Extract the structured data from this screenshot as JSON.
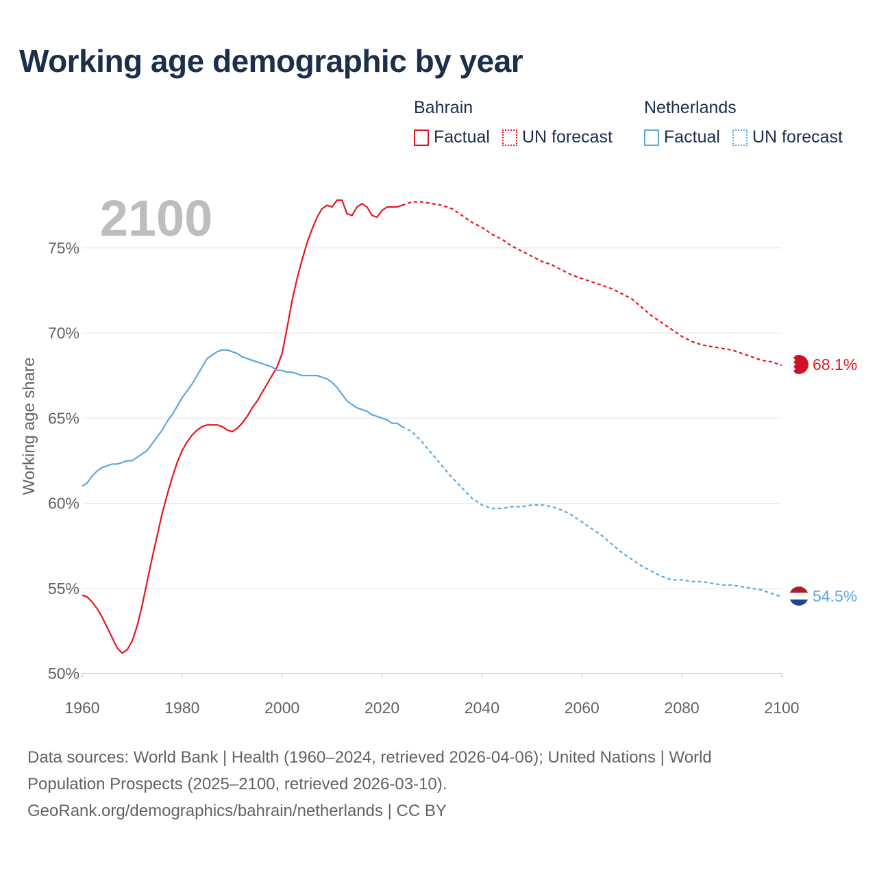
{
  "title": "Working age demographic by year",
  "legend": {
    "groups": [
      {
        "name": "Bahrain",
        "color": "#e8141c",
        "factual_label": "Factual",
        "forecast_label": "UN forecast"
      },
      {
        "name": "Netherlands",
        "color": "#5aa7e2",
        "factual_label": "Factual",
        "forecast_label": "UN forecast"
      }
    ]
  },
  "chart_data": {
    "type": "line",
    "title": "Working age demographic by year",
    "xlabel": "",
    "ylabel": "Working age share",
    "xlim": [
      1960,
      2100
    ],
    "ylim": [
      50,
      78.5
    ],
    "x_ticks": [
      1960,
      1980,
      2000,
      2020,
      2040,
      2060,
      2080,
      2100
    ],
    "x_tick_labels": [
      "1960",
      "1980",
      "2000",
      "2020",
      "2040",
      "2060",
      "2080",
      "2100"
    ],
    "y_ticks": [
      50,
      55,
      60,
      65,
      70,
      75
    ],
    "y_tick_labels": [
      "50%",
      "55%",
      "60%",
      "65%",
      "70%",
      "75%"
    ],
    "year_watermark": "2100",
    "factual_range": [
      1960,
      2024
    ],
    "forecast_range": [
      2024,
      2100
    ],
    "series": [
      {
        "name": "Bahrain",
        "color": "#e8141c",
        "end_label": "68.1%",
        "end_icon": "bahrain-flag-icon",
        "points": [
          [
            1960,
            54.6
          ],
          [
            1961,
            54.5
          ],
          [
            1962,
            54.2
          ],
          [
            1963,
            53.8
          ],
          [
            1964,
            53.3
          ],
          [
            1965,
            52.7
          ],
          [
            1966,
            52.1
          ],
          [
            1967,
            51.5
          ],
          [
            1968,
            51.2
          ],
          [
            1969,
            51.4
          ],
          [
            1970,
            51.9
          ],
          [
            1971,
            52.8
          ],
          [
            1972,
            54.0
          ],
          [
            1973,
            55.4
          ],
          [
            1974,
            56.8
          ],
          [
            1975,
            58.1
          ],
          [
            1976,
            59.4
          ],
          [
            1977,
            60.5
          ],
          [
            1978,
            61.5
          ],
          [
            1979,
            62.4
          ],
          [
            1980,
            63.1
          ],
          [
            1981,
            63.6
          ],
          [
            1982,
            64.0
          ],
          [
            1983,
            64.3
          ],
          [
            1984,
            64.5
          ],
          [
            1985,
            64.6
          ],
          [
            1986,
            64.6
          ],
          [
            1987,
            64.6
          ],
          [
            1988,
            64.5
          ],
          [
            1989,
            64.3
          ],
          [
            1990,
            64.2
          ],
          [
            1991,
            64.4
          ],
          [
            1992,
            64.7
          ],
          [
            1993,
            65.1
          ],
          [
            1994,
            65.6
          ],
          [
            1995,
            66.0
          ],
          [
            1996,
            66.5
          ],
          [
            1997,
            67.0
          ],
          [
            1998,
            67.5
          ],
          [
            1999,
            68.0
          ],
          [
            2000,
            68.8
          ],
          [
            2001,
            70.3
          ],
          [
            2002,
            71.9
          ],
          [
            2003,
            73.2
          ],
          [
            2004,
            74.3
          ],
          [
            2005,
            75.3
          ],
          [
            2006,
            76.1
          ],
          [
            2007,
            76.8
          ],
          [
            2008,
            77.3
          ],
          [
            2009,
            77.5
          ],
          [
            2010,
            77.4
          ],
          [
            2011,
            77.8
          ],
          [
            2012,
            77.8
          ],
          [
            2013,
            77.0
          ],
          [
            2014,
            76.9
          ],
          [
            2015,
            77.4
          ],
          [
            2016,
            77.6
          ],
          [
            2017,
            77.4
          ],
          [
            2018,
            76.9
          ],
          [
            2019,
            76.8
          ],
          [
            2020,
            77.2
          ],
          [
            2021,
            77.4
          ],
          [
            2022,
            77.4
          ],
          [
            2023,
            77.4
          ],
          [
            2024,
            77.5
          ],
          [
            2026,
            77.7
          ],
          [
            2028,
            77.7
          ],
          [
            2030,
            77.6
          ],
          [
            2032,
            77.5
          ],
          [
            2034,
            77.3
          ],
          [
            2036,
            76.9
          ],
          [
            2038,
            76.5
          ],
          [
            2040,
            76.2
          ],
          [
            2042,
            75.8
          ],
          [
            2044,
            75.5
          ],
          [
            2046,
            75.1
          ],
          [
            2048,
            74.8
          ],
          [
            2050,
            74.5
          ],
          [
            2052,
            74.2
          ],
          [
            2054,
            74.0
          ],
          [
            2056,
            73.7
          ],
          [
            2058,
            73.4
          ],
          [
            2060,
            73.2
          ],
          [
            2062,
            73.0
          ],
          [
            2064,
            72.8
          ],
          [
            2066,
            72.6
          ],
          [
            2068,
            72.3
          ],
          [
            2070,
            72.0
          ],
          [
            2072,
            71.5
          ],
          [
            2074,
            71.0
          ],
          [
            2076,
            70.6
          ],
          [
            2078,
            70.2
          ],
          [
            2080,
            69.8
          ],
          [
            2082,
            69.5
          ],
          [
            2084,
            69.3
          ],
          [
            2086,
            69.2
          ],
          [
            2088,
            69.1
          ],
          [
            2090,
            69.0
          ],
          [
            2092,
            68.8
          ],
          [
            2094,
            68.6
          ],
          [
            2096,
            68.4
          ],
          [
            2098,
            68.3
          ],
          [
            2100,
            68.1
          ]
        ]
      },
      {
        "name": "Netherlands",
        "color": "#5aa7e2",
        "end_label": "54.5%",
        "end_icon": "netherlands-flag-icon",
        "points": [
          [
            1960,
            61.0
          ],
          [
            1961,
            61.2
          ],
          [
            1962,
            61.6
          ],
          [
            1963,
            61.9
          ],
          [
            1964,
            62.1
          ],
          [
            1965,
            62.2
          ],
          [
            1966,
            62.3
          ],
          [
            1967,
            62.3
          ],
          [
            1968,
            62.4
          ],
          [
            1969,
            62.5
          ],
          [
            1970,
            62.5
          ],
          [
            1971,
            62.7
          ],
          [
            1972,
            62.9
          ],
          [
            1973,
            63.1
          ],
          [
            1974,
            63.5
          ],
          [
            1975,
            63.9
          ],
          [
            1976,
            64.3
          ],
          [
            1977,
            64.8
          ],
          [
            1978,
            65.2
          ],
          [
            1979,
            65.7
          ],
          [
            1980,
            66.2
          ],
          [
            1981,
            66.6
          ],
          [
            1982,
            67.0
          ],
          [
            1983,
            67.5
          ],
          [
            1984,
            68.0
          ],
          [
            1985,
            68.5
          ],
          [
            1986,
            68.7
          ],
          [
            1987,
            68.9
          ],
          [
            1988,
            69.0
          ],
          [
            1989,
            69.0
          ],
          [
            1990,
            68.9
          ],
          [
            1991,
            68.8
          ],
          [
            1992,
            68.6
          ],
          [
            1993,
            68.5
          ],
          [
            1994,
            68.4
          ],
          [
            1995,
            68.3
          ],
          [
            1996,
            68.2
          ],
          [
            1997,
            68.1
          ],
          [
            1998,
            68.0
          ],
          [
            1999,
            67.8
          ],
          [
            2000,
            67.8
          ],
          [
            2001,
            67.7
          ],
          [
            2002,
            67.7
          ],
          [
            2003,
            67.6
          ],
          [
            2004,
            67.5
          ],
          [
            2005,
            67.5
          ],
          [
            2006,
            67.5
          ],
          [
            2007,
            67.5
          ],
          [
            2008,
            67.4
          ],
          [
            2009,
            67.3
          ],
          [
            2010,
            67.1
          ],
          [
            2011,
            66.8
          ],
          [
            2012,
            66.4
          ],
          [
            2013,
            66.0
          ],
          [
            2014,
            65.8
          ],
          [
            2015,
            65.6
          ],
          [
            2016,
            65.5
          ],
          [
            2017,
            65.4
          ],
          [
            2018,
            65.2
          ],
          [
            2019,
            65.1
          ],
          [
            2020,
            65.0
          ],
          [
            2021,
            64.9
          ],
          [
            2022,
            64.7
          ],
          [
            2023,
            64.7
          ],
          [
            2024,
            64.5
          ],
          [
            2026,
            64.2
          ],
          [
            2028,
            63.6
          ],
          [
            2030,
            62.9
          ],
          [
            2032,
            62.2
          ],
          [
            2034,
            61.5
          ],
          [
            2036,
            60.9
          ],
          [
            2038,
            60.3
          ],
          [
            2040,
            59.9
          ],
          [
            2042,
            59.7
          ],
          [
            2044,
            59.7
          ],
          [
            2046,
            59.8
          ],
          [
            2048,
            59.8
          ],
          [
            2050,
            59.9
          ],
          [
            2052,
            59.9
          ],
          [
            2054,
            59.8
          ],
          [
            2056,
            59.6
          ],
          [
            2058,
            59.3
          ],
          [
            2060,
            58.9
          ],
          [
            2062,
            58.5
          ],
          [
            2064,
            58.1
          ],
          [
            2066,
            57.6
          ],
          [
            2068,
            57.1
          ],
          [
            2070,
            56.7
          ],
          [
            2072,
            56.3
          ],
          [
            2074,
            56.0
          ],
          [
            2076,
            55.7
          ],
          [
            2078,
            55.5
          ],
          [
            2080,
            55.5
          ],
          [
            2082,
            55.4
          ],
          [
            2084,
            55.4
          ],
          [
            2086,
            55.3
          ],
          [
            2088,
            55.2
          ],
          [
            2090,
            55.2
          ],
          [
            2092,
            55.1
          ],
          [
            2094,
            55.0
          ],
          [
            2096,
            54.9
          ],
          [
            2098,
            54.7
          ],
          [
            2100,
            54.5
          ]
        ]
      }
    ]
  },
  "footer": {
    "line1": "Data sources: World Bank | Health (1960–2024, retrieved 2026-04-06); United Nations | World",
    "line2": "Population Prospects (2025–2100, retrieved 2026-03-10).",
    "line3": "GeoRank.org/demographics/bahrain/netherlands | CC BY"
  }
}
